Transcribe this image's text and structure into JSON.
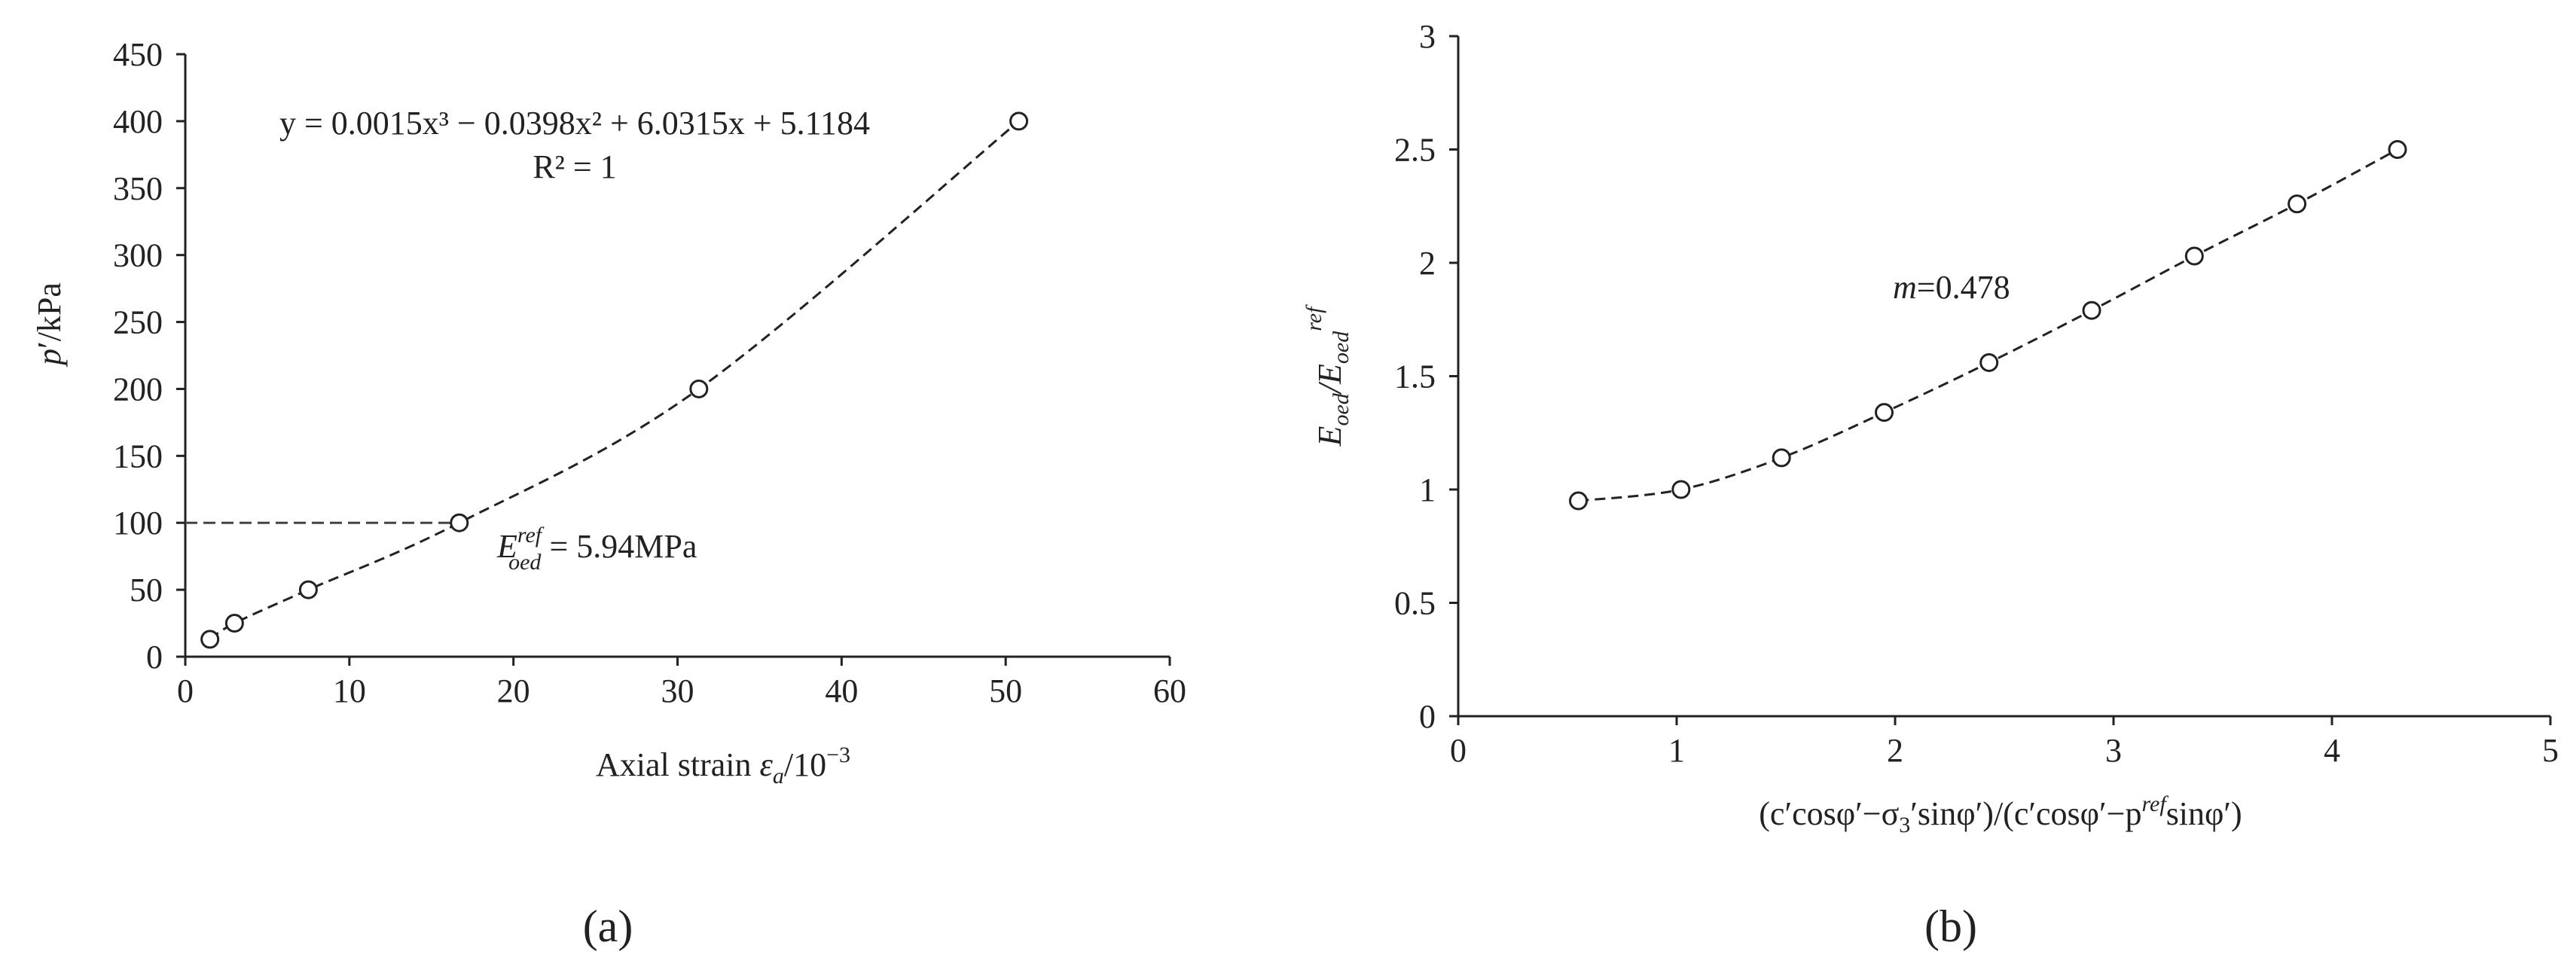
{
  "chart_data": [
    {
      "type": "scatter",
      "caption": "(a)",
      "x_label": [
        "Axial strain ",
        "ε",
        "a",
        "/10",
        "−3"
      ],
      "y_label": [
        "p",
        "′/kPa"
      ],
      "annotations": [
        "y = 0.0015x³ − 0.0398x² + 6.0315x + 5.1184",
        "R² = 1"
      ],
      "e_label": [
        "E",
        "ref",
        "oed",
        " = 5.94MPa"
      ],
      "x": [
        1.5,
        3,
        7.5,
        16.7,
        31.3,
        50.8
      ],
      "values": [
        13,
        25,
        50,
        100,
        200,
        400
      ],
      "color": "#222222",
      "xlim": [
        0,
        60
      ],
      "xticks": [
        0,
        10,
        20,
        30,
        40,
        50,
        60
      ],
      "ylim": [
        0,
        450
      ],
      "yticks": [
        0,
        50,
        100,
        150,
        200,
        250,
        300,
        350,
        400,
        450
      ]
    },
    {
      "type": "scatter",
      "caption": "(b)",
      "x_label": [
        "(c′cosφ′−σ",
        "3",
        "′sinφ′)/(c′cosφ′−p",
        "ref",
        "sinφ′)"
      ],
      "y_label": [
        "E",
        "oed",
        "/E",
        "oed",
        "ref"
      ],
      "m_label": [
        "m",
        "=0.478"
      ],
      "x": [
        0.55,
        1.02,
        1.48,
        1.95,
        2.43,
        2.9,
        3.37,
        3.84,
        4.3
      ],
      "values": [
        0.95,
        1.0,
        1.14,
        1.34,
        1.56,
        1.79,
        2.03,
        2.26,
        2.5
      ],
      "color": "#222222",
      "xlim": [
        0,
        5
      ],
      "xticks": [
        0,
        1,
        2,
        3,
        4,
        5
      ],
      "ylim": [
        0,
        3
      ],
      "yticks": [
        0,
        0.5,
        1,
        1.5,
        2,
        2.5,
        3
      ]
    }
  ]
}
